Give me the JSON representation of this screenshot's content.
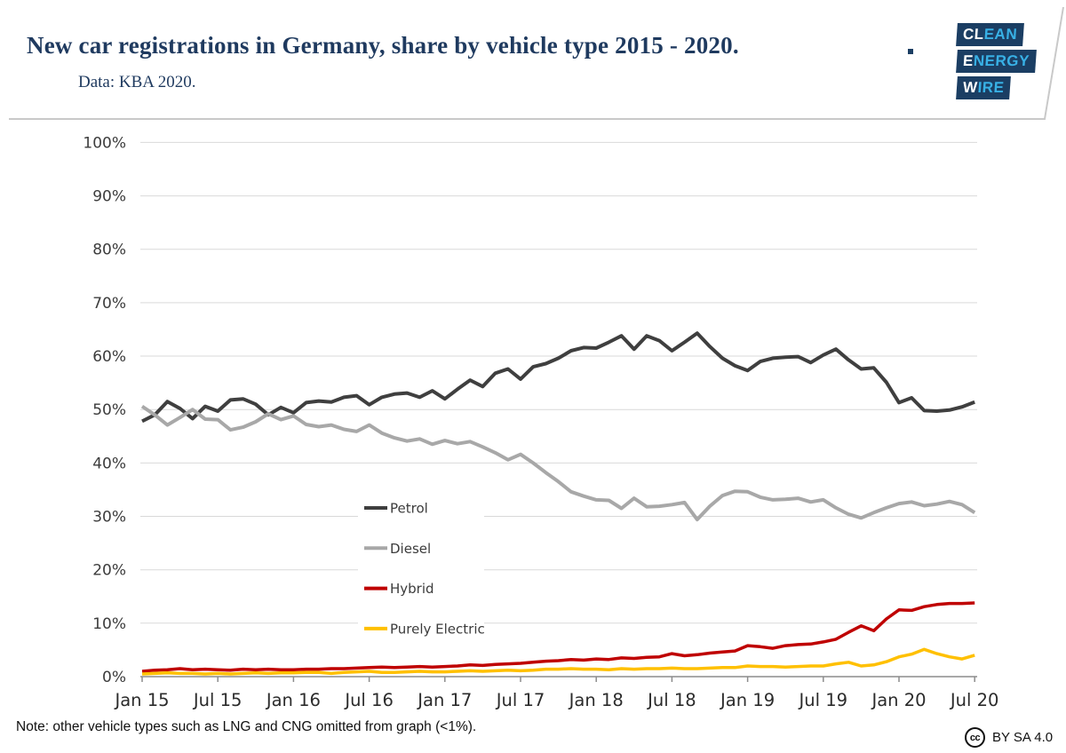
{
  "header": {
    "title": "New car registrations in Germany, share by vehicle type 2015 - 2020.",
    "subtitle": "Data: KBA 2020.",
    "logo_lines": [
      {
        "white": "CL",
        "blue": "EAN"
      },
      {
        "white": "E",
        "blue": "NERGY"
      },
      {
        "white": "W",
        "blue": "IRE"
      }
    ]
  },
  "footnote": "Note: other vehicle types such as LNG and CNG omitted from graph (<1%).",
  "license": {
    "icon": "cc-icon",
    "label": "BY SA 4.0"
  },
  "colors": {
    "title_navy": "#1f3a5f",
    "logo_box": "#1b3e63",
    "logo_blue": "#38b0e5",
    "gridline": "#d9d9d9",
    "axis_line": "#8c8c8c",
    "tick_text": "#3c3c3c",
    "border_line": "#c9c9c9"
  },
  "chart_data": {
    "type": "line",
    "title": "",
    "xlabel": "",
    "ylabel": "",
    "ylim": [
      0,
      100
    ],
    "grid": true,
    "legend_position": "inside-middle-left",
    "x_unit": "month",
    "x_range": [
      "Jan 2015",
      "Jul 2020"
    ],
    "x_tick_labels": [
      "Jan 15",
      "Jul 15",
      "Jan 16",
      "Jul 16",
      "Jan 17",
      "Jul 17",
      "Jan 18",
      "Jul 18",
      "Jan 19",
      "Jul 19",
      "Jan 20",
      "Jul 20"
    ],
    "y_tick_labels": [
      "0%",
      "10%",
      "20%",
      "30%",
      "40%",
      "50%",
      "60%",
      "70%",
      "80%",
      "90%",
      "100%"
    ],
    "series": [
      {
        "name": "Petrol",
        "color": "#3f3f3f",
        "values": [
          47.8,
          49.0,
          51.5,
          50.2,
          48.3,
          50.6,
          49.7,
          51.8,
          52.0,
          51.0,
          49.0,
          50.4,
          49.4,
          51.3,
          51.6,
          51.4,
          52.3,
          52.6,
          50.9,
          52.3,
          52.9,
          53.1,
          52.3,
          53.5,
          52.0,
          53.8,
          55.5,
          54.3,
          56.8,
          57.6,
          55.7,
          58.0,
          58.6,
          59.6,
          61.0,
          61.6,
          61.5,
          62.6,
          63.8,
          61.3,
          63.8,
          62.9,
          61.0,
          62.6,
          64.3,
          61.8,
          59.6,
          58.2,
          57.3,
          59.0,
          59.6,
          59.8,
          59.9,
          58.8,
          60.2,
          61.3,
          59.3,
          57.6,
          57.8,
          55.1,
          51.3,
          52.2,
          49.8,
          49.7,
          49.9,
          50.5,
          51.4
        ]
      },
      {
        "name": "Diesel",
        "color": "#a8a8a8",
        "values": [
          50.6,
          49.0,
          47.1,
          48.5,
          50.0,
          48.2,
          48.1,
          46.2,
          46.7,
          47.7,
          49.2,
          48.1,
          48.8,
          47.2,
          46.8,
          47.1,
          46.3,
          45.9,
          47.1,
          45.6,
          44.7,
          44.1,
          44.5,
          43.5,
          44.2,
          43.6,
          44.0,
          43.0,
          41.9,
          40.6,
          41.6,
          40.0,
          38.2,
          36.5,
          34.6,
          33.8,
          33.1,
          33.0,
          31.5,
          33.4,
          31.8,
          31.9,
          32.2,
          32.6,
          29.4,
          31.9,
          33.9,
          34.7,
          34.6,
          33.6,
          33.1,
          33.2,
          33.4,
          32.7,
          33.1,
          31.6,
          30.4,
          29.7,
          30.7,
          31.6,
          32.4,
          32.7,
          32.0,
          32.3,
          32.8,
          32.2,
          30.7
        ]
      },
      {
        "name": "Hybrid",
        "color": "#bf0000",
        "values": [
          1.0,
          1.2,
          1.3,
          1.5,
          1.3,
          1.4,
          1.3,
          1.2,
          1.4,
          1.3,
          1.4,
          1.3,
          1.3,
          1.4,
          1.4,
          1.5,
          1.5,
          1.6,
          1.7,
          1.8,
          1.7,
          1.8,
          1.9,
          1.8,
          1.9,
          2.0,
          2.2,
          2.1,
          2.3,
          2.4,
          2.5,
          2.7,
          2.9,
          3.0,
          3.2,
          3.1,
          3.3,
          3.2,
          3.5,
          3.4,
          3.6,
          3.7,
          4.3,
          3.9,
          4.1,
          4.4,
          4.6,
          4.8,
          5.8,
          5.6,
          5.3,
          5.8,
          6.0,
          6.1,
          6.5,
          7.0,
          8.3,
          9.5,
          8.6,
          10.8,
          12.5,
          12.4,
          13.1,
          13.5,
          13.7,
          13.7,
          13.8
        ]
      },
      {
        "name": "Purely Electric",
        "color": "#ffc000",
        "values": [
          0.5,
          0.6,
          0.7,
          0.6,
          0.6,
          0.5,
          0.6,
          0.5,
          0.6,
          0.7,
          0.6,
          0.7,
          0.7,
          0.8,
          0.8,
          0.6,
          0.8,
          0.9,
          1.0,
          0.8,
          0.8,
          0.9,
          1.0,
          0.9,
          0.9,
          1.0,
          1.1,
          1.0,
          1.1,
          1.2,
          1.1,
          1.2,
          1.4,
          1.4,
          1.5,
          1.4,
          1.4,
          1.3,
          1.5,
          1.4,
          1.5,
          1.5,
          1.6,
          1.5,
          1.5,
          1.6,
          1.7,
          1.7,
          2.0,
          1.9,
          1.9,
          1.8,
          1.9,
          2.0,
          2.0,
          2.4,
          2.7,
          2.0,
          2.2,
          2.8,
          3.7,
          4.2,
          5.1,
          4.3,
          3.7,
          3.3,
          4.0
        ]
      }
    ]
  }
}
